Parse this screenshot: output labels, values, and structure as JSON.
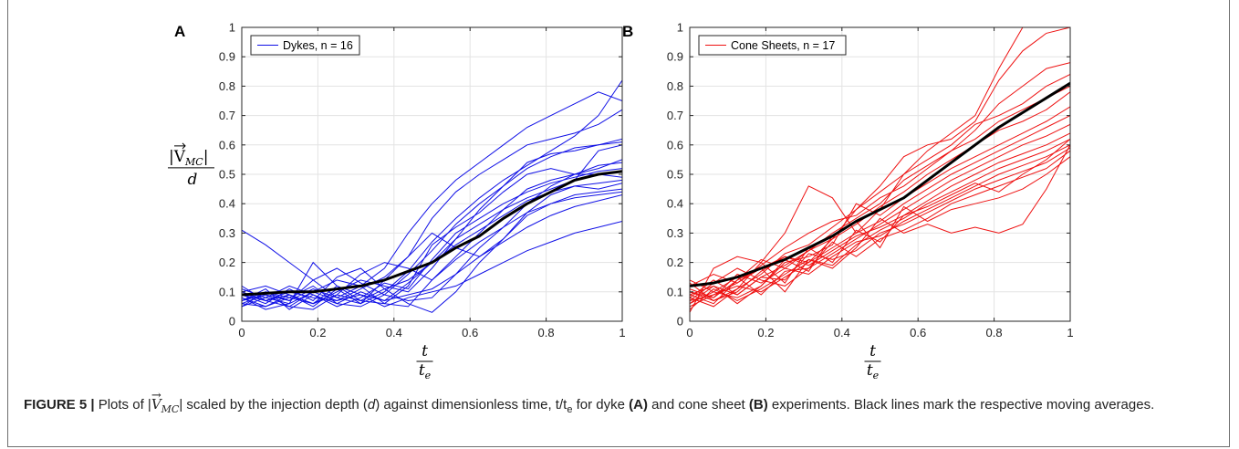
{
  "chart_data": [
    {
      "panel": "A",
      "type": "line",
      "xlim": [
        0,
        1
      ],
      "ylim": [
        0,
        1
      ],
      "xticks": [
        "0",
        "0.2",
        "0.4",
        "0.6",
        "0.8",
        "1"
      ],
      "yticks": [
        "0",
        "0.1",
        "0.2",
        "0.3",
        "0.4",
        "0.5",
        "0.6",
        "0.7",
        "0.8",
        "0.9",
        "1"
      ],
      "xlabel_num": "t",
      "xlabel_den": "t",
      "xlabel_den_sub": "e",
      "ylabel_num": "|V",
      "ylabel_num_sub": "MC",
      "ylabel_num_close": "|",
      "ylabel_den": "d",
      "grid": true,
      "legend": {
        "label": "Dykes, n = 16",
        "position": "top-left"
      },
      "series_color": "#1010e6",
      "x": [
        0,
        0.0625,
        0.125,
        0.1875,
        0.25,
        0.3125,
        0.375,
        0.4375,
        0.5,
        0.5625,
        0.625,
        0.6875,
        0.75,
        0.8125,
        0.875,
        0.9375,
        1
      ],
      "series": [
        {
          "values": [
            0.31,
            0.26,
            0.2,
            0.14,
            0.08,
            0.06,
            0.1,
            0.17,
            0.27,
            0.35,
            0.42,
            0.48,
            0.53,
            0.58,
            0.63,
            0.7,
            0.82
          ]
        },
        {
          "values": [
            0.05,
            0.08,
            0.06,
            0.1,
            0.14,
            0.12,
            0.18,
            0.3,
            0.4,
            0.48,
            0.54,
            0.6,
            0.66,
            0.7,
            0.74,
            0.78,
            0.75
          ]
        },
        {
          "values": [
            0.09,
            0.07,
            0.1,
            0.08,
            0.07,
            0.11,
            0.15,
            0.22,
            0.35,
            0.44,
            0.5,
            0.55,
            0.6,
            0.62,
            0.64,
            0.67,
            0.72
          ]
        },
        {
          "values": [
            0.06,
            0.05,
            0.08,
            0.12,
            0.06,
            0.05,
            0.09,
            0.16,
            0.24,
            0.33,
            0.4,
            0.46,
            0.52,
            0.56,
            0.59,
            0.6,
            0.62
          ]
        },
        {
          "values": [
            0.1,
            0.12,
            0.09,
            0.06,
            0.1,
            0.14,
            0.12,
            0.1,
            0.18,
            0.28,
            0.38,
            0.46,
            0.54,
            0.57,
            0.58,
            0.6,
            0.61
          ]
        },
        {
          "values": [
            0.08,
            0.04,
            0.06,
            0.2,
            0.12,
            0.07,
            0.06,
            0.12,
            0.26,
            0.32,
            0.37,
            0.44,
            0.5,
            0.52,
            0.5,
            0.52,
            0.55
          ]
        },
        {
          "values": [
            0.07,
            0.09,
            0.05,
            0.04,
            0.09,
            0.16,
            0.2,
            0.18,
            0.14,
            0.22,
            0.3,
            0.38,
            0.45,
            0.48,
            0.5,
            0.53,
            0.54
          ]
        },
        {
          "values": [
            0.11,
            0.08,
            0.12,
            0.09,
            0.05,
            0.08,
            0.13,
            0.11,
            0.21,
            0.3,
            0.35,
            0.4,
            0.44,
            0.47,
            0.49,
            0.51,
            0.52
          ]
        },
        {
          "values": [
            0.05,
            0.1,
            0.07,
            0.14,
            0.18,
            0.13,
            0.09,
            0.07,
            0.08,
            0.16,
            0.25,
            0.32,
            0.4,
            0.46,
            0.5,
            0.5,
            0.49
          ]
        },
        {
          "values": [
            0.09,
            0.06,
            0.11,
            0.07,
            0.15,
            0.18,
            0.11,
            0.06,
            0.03,
            0.1,
            0.2,
            0.28,
            0.37,
            0.43,
            0.46,
            0.47,
            0.48
          ]
        },
        {
          "values": [
            0.07,
            0.11,
            0.04,
            0.09,
            0.06,
            0.1,
            0.07,
            0.13,
            0.2,
            0.26,
            0.31,
            0.36,
            0.41,
            0.44,
            0.46,
            0.45,
            0.47
          ]
        },
        {
          "values": [
            0.12,
            0.07,
            0.09,
            0.05,
            0.11,
            0.06,
            0.14,
            0.22,
            0.3,
            0.25,
            0.22,
            0.28,
            0.36,
            0.4,
            0.43,
            0.44,
            0.45
          ]
        },
        {
          "values": [
            0.06,
            0.09,
            0.07,
            0.11,
            0.08,
            0.12,
            0.06,
            0.05,
            0.14,
            0.21,
            0.27,
            0.32,
            0.37,
            0.4,
            0.42,
            0.43,
            0.44
          ]
        },
        {
          "values": [
            0.08,
            0.05,
            0.09,
            0.06,
            0.12,
            0.09,
            0.07,
            0.09,
            0.11,
            0.16,
            0.22,
            0.27,
            0.32,
            0.36,
            0.39,
            0.41,
            0.43
          ]
        },
        {
          "values": [
            0.1,
            0.07,
            0.05,
            0.1,
            0.07,
            0.09,
            0.05,
            0.08,
            0.1,
            0.12,
            0.16,
            0.2,
            0.24,
            0.27,
            0.3,
            0.32,
            0.34
          ]
        },
        {
          "values": [
            0.07,
            0.1,
            0.08,
            0.06,
            0.09,
            0.07,
            0.11,
            0.14,
            0.2,
            0.28,
            0.33,
            0.38,
            0.42,
            0.45,
            0.48,
            0.58,
            0.6
          ]
        }
      ],
      "average": {
        "color": "#000000",
        "values": [
          0.09,
          0.095,
          0.1,
          0.1,
          0.11,
          0.12,
          0.14,
          0.17,
          0.2,
          0.25,
          0.29,
          0.35,
          0.4,
          0.44,
          0.48,
          0.5,
          0.51
        ]
      }
    },
    {
      "panel": "B",
      "type": "line",
      "xlim": [
        0,
        1
      ],
      "ylim": [
        0,
        1
      ],
      "xticks": [
        "0",
        "0.2",
        "0.4",
        "0.6",
        "0.8",
        "1"
      ],
      "yticks": [
        "0",
        "0.1",
        "0.2",
        "0.3",
        "0.4",
        "0.5",
        "0.6",
        "0.7",
        "0.8",
        "0.9",
        "1"
      ],
      "xlabel_num": "t",
      "xlabel_den": "t",
      "xlabel_den_sub": "e",
      "grid": true,
      "legend": {
        "label": "Cone Sheets, n = 17",
        "position": "top-left"
      },
      "series_color": "#ee1111",
      "x": [
        0,
        0.0625,
        0.125,
        0.1875,
        0.25,
        0.3125,
        0.375,
        0.4375,
        0.5,
        0.5625,
        0.625,
        0.6875,
        0.75,
        0.8125,
        0.875,
        0.9375,
        1
      ],
      "series": [
        {
          "values": [
            0.03,
            0.18,
            0.22,
            0.2,
            0.3,
            0.46,
            0.42,
            0.3,
            0.38,
            0.5,
            0.58,
            0.64,
            0.7,
            0.86,
            1.0,
            1.0,
            1.0
          ]
        },
        {
          "values": [
            0.1,
            0.08,
            0.14,
            0.18,
            0.22,
            0.2,
            0.28,
            0.38,
            0.46,
            0.56,
            0.6,
            0.62,
            0.68,
            0.82,
            0.92,
            0.98,
            1.0
          ]
        },
        {
          "values": [
            0.06,
            0.12,
            0.09,
            0.15,
            0.19,
            0.24,
            0.3,
            0.35,
            0.4,
            0.48,
            0.53,
            0.58,
            0.65,
            0.74,
            0.8,
            0.86,
            0.88
          ]
        },
        {
          "values": [
            0.08,
            0.05,
            0.11,
            0.16,
            0.23,
            0.26,
            0.32,
            0.38,
            0.44,
            0.5,
            0.55,
            0.6,
            0.67,
            0.7,
            0.74,
            0.8,
            0.84
          ]
        },
        {
          "values": [
            0.12,
            0.16,
            0.13,
            0.19,
            0.25,
            0.3,
            0.34,
            0.36,
            0.42,
            0.46,
            0.52,
            0.58,
            0.62,
            0.68,
            0.72,
            0.76,
            0.8
          ]
        },
        {
          "values": [
            0.09,
            0.06,
            0.14,
            0.21,
            0.18,
            0.24,
            0.28,
            0.33,
            0.39,
            0.44,
            0.5,
            0.55,
            0.6,
            0.65,
            0.68,
            0.72,
            0.78
          ]
        },
        {
          "values": [
            0.14,
            0.1,
            0.08,
            0.12,
            0.2,
            0.22,
            0.26,
            0.4,
            0.36,
            0.42,
            0.47,
            0.52,
            0.56,
            0.6,
            0.64,
            0.68,
            0.73
          ]
        },
        {
          "values": [
            0.05,
            0.09,
            0.12,
            0.1,
            0.15,
            0.2,
            0.25,
            0.3,
            0.34,
            0.4,
            0.45,
            0.5,
            0.54,
            0.58,
            0.62,
            0.66,
            0.7
          ]
        },
        {
          "values": [
            0.07,
            0.13,
            0.18,
            0.14,
            0.12,
            0.18,
            0.23,
            0.28,
            0.33,
            0.38,
            0.43,
            0.48,
            0.52,
            0.56,
            0.6,
            0.63,
            0.67
          ]
        },
        {
          "values": [
            0.1,
            0.07,
            0.1,
            0.17,
            0.22,
            0.19,
            0.24,
            0.29,
            0.32,
            0.36,
            0.41,
            0.46,
            0.5,
            0.54,
            0.57,
            0.6,
            0.64
          ]
        },
        {
          "values": [
            0.04,
            0.11,
            0.07,
            0.11,
            0.16,
            0.21,
            0.19,
            0.26,
            0.31,
            0.35,
            0.4,
            0.44,
            0.48,
            0.52,
            0.55,
            0.58,
            0.62
          ]
        },
        {
          "values": [
            0.11,
            0.08,
            0.16,
            0.13,
            0.18,
            0.16,
            0.22,
            0.27,
            0.29,
            0.34,
            0.38,
            0.42,
            0.46,
            0.5,
            0.53,
            0.56,
            0.6
          ]
        },
        {
          "values": [
            0.08,
            0.14,
            0.09,
            0.15,
            0.14,
            0.23,
            0.21,
            0.24,
            0.3,
            0.33,
            0.37,
            0.41,
            0.45,
            0.48,
            0.51,
            0.54,
            0.59
          ]
        },
        {
          "values": [
            0.06,
            0.1,
            0.15,
            0.09,
            0.17,
            0.18,
            0.27,
            0.22,
            0.28,
            0.31,
            0.35,
            0.4,
            0.43,
            0.46,
            0.49,
            0.52,
            0.58
          ]
        },
        {
          "values": [
            0.13,
            0.07,
            0.11,
            0.2,
            0.13,
            0.25,
            0.2,
            0.31,
            0.27,
            0.36,
            0.39,
            0.43,
            0.47,
            0.44,
            0.5,
            0.55,
            0.62
          ]
        },
        {
          "values": [
            0.09,
            0.12,
            0.06,
            0.12,
            0.21,
            0.17,
            0.29,
            0.34,
            0.25,
            0.39,
            0.34,
            0.38,
            0.4,
            0.42,
            0.45,
            0.5,
            0.56
          ]
        },
        {
          "values": [
            0.07,
            0.09,
            0.13,
            0.18,
            0.1,
            0.21,
            0.18,
            0.25,
            0.35,
            0.3,
            0.33,
            0.3,
            0.32,
            0.3,
            0.33,
            0.45,
            0.6
          ]
        }
      ],
      "average": {
        "color": "#000000",
        "values": [
          0.12,
          0.13,
          0.15,
          0.18,
          0.21,
          0.25,
          0.29,
          0.34,
          0.38,
          0.42,
          0.48,
          0.54,
          0.6,
          0.66,
          0.71,
          0.76,
          0.81
        ]
      }
    }
  ],
  "caption": {
    "label": "FIGURE 5 |",
    "text_1": " Plots of |",
    "vec": "V",
    "vec_sub": "MC",
    "text_2": "| scaled by the injection depth (",
    "depth_symbol": "d",
    "text_3": ") against dimensionless time, t/t",
    "text_3_sub": "e",
    "text_4": " for dyke ",
    "panel_a": "(A)",
    "text_5": " and cone sheet ",
    "panel_b": "(B)",
    "text_6": " experiments. Black lines mark the respective moving averages."
  }
}
